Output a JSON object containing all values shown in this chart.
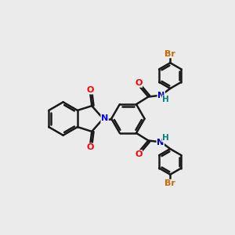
{
  "background_color": "#ebebeb",
  "bond_color": "#1a1a1a",
  "bond_width": 1.8,
  "atom_colors": {
    "O": "#ff0000",
    "N_iso": "#0000ff",
    "N_amide": "#0000cc",
    "H_amide": "#008080",
    "Br1": "#cc6600",
    "Br2": "#cc6600"
  },
  "figsize": [
    3.0,
    3.0
  ],
  "dpi": 100,
  "xlim": [
    0,
    12
  ],
  "ylim": [
    0,
    12
  ]
}
